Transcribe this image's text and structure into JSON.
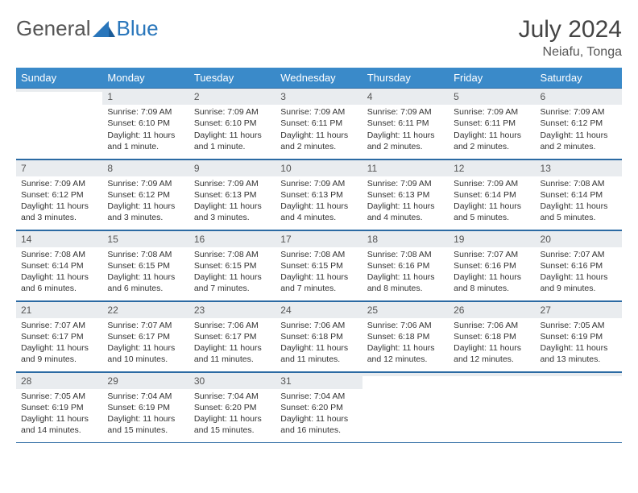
{
  "brand": {
    "word1": "General",
    "word2": "Blue"
  },
  "title": "July 2024",
  "location": "Neiafu, Tonga",
  "colors": {
    "header_bg": "#3a8ac9",
    "header_text": "#ffffff",
    "daynum_bg": "#e9ecef",
    "border": "#2b6aa3",
    "brand_blue": "#2976bb"
  },
  "weekdays": [
    "Sunday",
    "Monday",
    "Tuesday",
    "Wednesday",
    "Thursday",
    "Friday",
    "Saturday"
  ],
  "weeks": [
    [
      {
        "n": "",
        "empty": true
      },
      {
        "n": "1",
        "sr": "Sunrise: 7:09 AM",
        "ss": "Sunset: 6:10 PM",
        "d1": "Daylight: 11 hours",
        "d2": "and 1 minute."
      },
      {
        "n": "2",
        "sr": "Sunrise: 7:09 AM",
        "ss": "Sunset: 6:10 PM",
        "d1": "Daylight: 11 hours",
        "d2": "and 1 minute."
      },
      {
        "n": "3",
        "sr": "Sunrise: 7:09 AM",
        "ss": "Sunset: 6:11 PM",
        "d1": "Daylight: 11 hours",
        "d2": "and 2 minutes."
      },
      {
        "n": "4",
        "sr": "Sunrise: 7:09 AM",
        "ss": "Sunset: 6:11 PM",
        "d1": "Daylight: 11 hours",
        "d2": "and 2 minutes."
      },
      {
        "n": "5",
        "sr": "Sunrise: 7:09 AM",
        "ss": "Sunset: 6:11 PM",
        "d1": "Daylight: 11 hours",
        "d2": "and 2 minutes."
      },
      {
        "n": "6",
        "sr": "Sunrise: 7:09 AM",
        "ss": "Sunset: 6:12 PM",
        "d1": "Daylight: 11 hours",
        "d2": "and 2 minutes."
      }
    ],
    [
      {
        "n": "7",
        "sr": "Sunrise: 7:09 AM",
        "ss": "Sunset: 6:12 PM",
        "d1": "Daylight: 11 hours",
        "d2": "and 3 minutes."
      },
      {
        "n": "8",
        "sr": "Sunrise: 7:09 AM",
        "ss": "Sunset: 6:12 PM",
        "d1": "Daylight: 11 hours",
        "d2": "and 3 minutes."
      },
      {
        "n": "9",
        "sr": "Sunrise: 7:09 AM",
        "ss": "Sunset: 6:13 PM",
        "d1": "Daylight: 11 hours",
        "d2": "and 3 minutes."
      },
      {
        "n": "10",
        "sr": "Sunrise: 7:09 AM",
        "ss": "Sunset: 6:13 PM",
        "d1": "Daylight: 11 hours",
        "d2": "and 4 minutes."
      },
      {
        "n": "11",
        "sr": "Sunrise: 7:09 AM",
        "ss": "Sunset: 6:13 PM",
        "d1": "Daylight: 11 hours",
        "d2": "and 4 minutes."
      },
      {
        "n": "12",
        "sr": "Sunrise: 7:09 AM",
        "ss": "Sunset: 6:14 PM",
        "d1": "Daylight: 11 hours",
        "d2": "and 5 minutes."
      },
      {
        "n": "13",
        "sr": "Sunrise: 7:08 AM",
        "ss": "Sunset: 6:14 PM",
        "d1": "Daylight: 11 hours",
        "d2": "and 5 minutes."
      }
    ],
    [
      {
        "n": "14",
        "sr": "Sunrise: 7:08 AM",
        "ss": "Sunset: 6:14 PM",
        "d1": "Daylight: 11 hours",
        "d2": "and 6 minutes."
      },
      {
        "n": "15",
        "sr": "Sunrise: 7:08 AM",
        "ss": "Sunset: 6:15 PM",
        "d1": "Daylight: 11 hours",
        "d2": "and 6 minutes."
      },
      {
        "n": "16",
        "sr": "Sunrise: 7:08 AM",
        "ss": "Sunset: 6:15 PM",
        "d1": "Daylight: 11 hours",
        "d2": "and 7 minutes."
      },
      {
        "n": "17",
        "sr": "Sunrise: 7:08 AM",
        "ss": "Sunset: 6:15 PM",
        "d1": "Daylight: 11 hours",
        "d2": "and 7 minutes."
      },
      {
        "n": "18",
        "sr": "Sunrise: 7:08 AM",
        "ss": "Sunset: 6:16 PM",
        "d1": "Daylight: 11 hours",
        "d2": "and 8 minutes."
      },
      {
        "n": "19",
        "sr": "Sunrise: 7:07 AM",
        "ss": "Sunset: 6:16 PM",
        "d1": "Daylight: 11 hours",
        "d2": "and 8 minutes."
      },
      {
        "n": "20",
        "sr": "Sunrise: 7:07 AM",
        "ss": "Sunset: 6:16 PM",
        "d1": "Daylight: 11 hours",
        "d2": "and 9 minutes."
      }
    ],
    [
      {
        "n": "21",
        "sr": "Sunrise: 7:07 AM",
        "ss": "Sunset: 6:17 PM",
        "d1": "Daylight: 11 hours",
        "d2": "and 9 minutes."
      },
      {
        "n": "22",
        "sr": "Sunrise: 7:07 AM",
        "ss": "Sunset: 6:17 PM",
        "d1": "Daylight: 11 hours",
        "d2": "and 10 minutes."
      },
      {
        "n": "23",
        "sr": "Sunrise: 7:06 AM",
        "ss": "Sunset: 6:17 PM",
        "d1": "Daylight: 11 hours",
        "d2": "and 11 minutes."
      },
      {
        "n": "24",
        "sr": "Sunrise: 7:06 AM",
        "ss": "Sunset: 6:18 PM",
        "d1": "Daylight: 11 hours",
        "d2": "and 11 minutes."
      },
      {
        "n": "25",
        "sr": "Sunrise: 7:06 AM",
        "ss": "Sunset: 6:18 PM",
        "d1": "Daylight: 11 hours",
        "d2": "and 12 minutes."
      },
      {
        "n": "26",
        "sr": "Sunrise: 7:06 AM",
        "ss": "Sunset: 6:18 PM",
        "d1": "Daylight: 11 hours",
        "d2": "and 12 minutes."
      },
      {
        "n": "27",
        "sr": "Sunrise: 7:05 AM",
        "ss": "Sunset: 6:19 PM",
        "d1": "Daylight: 11 hours",
        "d2": "and 13 minutes."
      }
    ],
    [
      {
        "n": "28",
        "sr": "Sunrise: 7:05 AM",
        "ss": "Sunset: 6:19 PM",
        "d1": "Daylight: 11 hours",
        "d2": "and 14 minutes."
      },
      {
        "n": "29",
        "sr": "Sunrise: 7:04 AM",
        "ss": "Sunset: 6:19 PM",
        "d1": "Daylight: 11 hours",
        "d2": "and 15 minutes."
      },
      {
        "n": "30",
        "sr": "Sunrise: 7:04 AM",
        "ss": "Sunset: 6:20 PM",
        "d1": "Daylight: 11 hours",
        "d2": "and 15 minutes."
      },
      {
        "n": "31",
        "sr": "Sunrise: 7:04 AM",
        "ss": "Sunset: 6:20 PM",
        "d1": "Daylight: 11 hours",
        "d2": "and 16 minutes."
      },
      {
        "n": "",
        "empty": true
      },
      {
        "n": "",
        "empty": true
      },
      {
        "n": "",
        "empty": true
      }
    ]
  ]
}
